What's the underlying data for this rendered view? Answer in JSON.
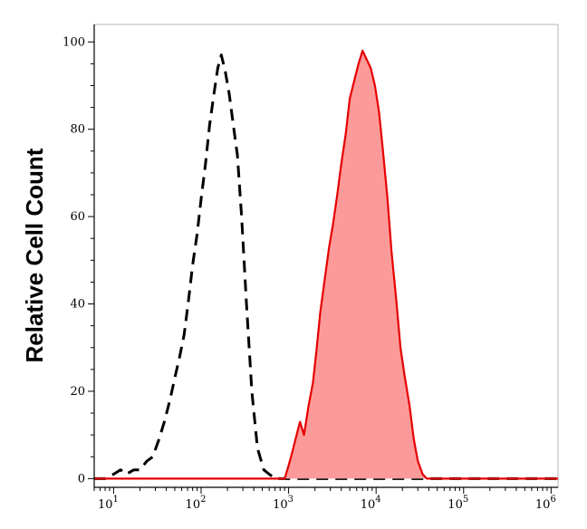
{
  "chart_data": {
    "type": "area",
    "title": "",
    "xlabel": "",
    "ylabel": "Relative Cell Count",
    "x_scale": "log",
    "xlim": [
      6,
      1200000
    ],
    "ylim": [
      -2,
      104
    ],
    "x_ticks": [
      {
        "value": 10,
        "base": "10",
        "exp": "1"
      },
      {
        "value": 100,
        "base": "10",
        "exp": "2"
      },
      {
        "value": 1000,
        "base": "10",
        "exp": "3"
      },
      {
        "value": 10000,
        "base": "10",
        "exp": "4"
      },
      {
        "value": 100000,
        "base": "10",
        "exp": "5"
      },
      {
        "value": 1000000,
        "base": "10",
        "exp": "6"
      }
    ],
    "y_ticks": [
      0,
      20,
      40,
      60,
      80,
      100
    ],
    "y_tick_labels": [
      "0",
      "20",
      "40",
      "60",
      "80",
      "100"
    ],
    "grid": false,
    "series": [
      {
        "style": "dashed",
        "color": "#000000",
        "fill": "none",
        "x": [
          6,
          8,
          10,
          12,
          14,
          17,
          20,
          24,
          28,
          33,
          38,
          44,
          50,
          57,
          64,
          72,
          80,
          90,
          100,
          112,
          125,
          140,
          155,
          170,
          190,
          210,
          230,
          260,
          290,
          330,
          380,
          440,
          520,
          600,
          700,
          820,
          1000,
          1500,
          3000,
          10000,
          100000,
          1200000
        ],
        "y": [
          0,
          0,
          1,
          2,
          1,
          2,
          2,
          4,
          5,
          9,
          13,
          18,
          23,
          28,
          33,
          41,
          49,
          56,
          64,
          72,
          81,
          88,
          94,
          97,
          93,
          88,
          82,
          74,
          60,
          40,
          20,
          7,
          2,
          1,
          0,
          0,
          0,
          0,
          0,
          0,
          0,
          0
        ]
      },
      {
        "style": "solid",
        "color": "#e60000",
        "fill": "#fc9a9a",
        "x": [
          6,
          900,
          1000,
          1100,
          1200,
          1350,
          1500,
          1700,
          1900,
          2100,
          2300,
          2600,
          2900,
          3200,
          3600,
          4000,
          4500,
          5000,
          5600,
          6300,
          7000,
          7800,
          8700,
          9700,
          10800,
          12000,
          13500,
          15000,
          17000,
          19000,
          21000,
          24000,
          27000,
          30000,
          34000,
          38000,
          45000,
          60000,
          1200000
        ],
        "y": [
          0,
          0,
          3,
          6,
          9,
          13,
          10,
          17,
          22,
          30,
          38,
          46,
          53,
          58,
          65,
          72,
          79,
          87,
          91,
          95,
          98,
          96,
          94,
          90,
          84,
          75,
          64,
          52,
          41,
          30,
          24,
          17,
          9,
          4,
          1,
          0,
          0,
          0,
          0
        ]
      }
    ]
  }
}
